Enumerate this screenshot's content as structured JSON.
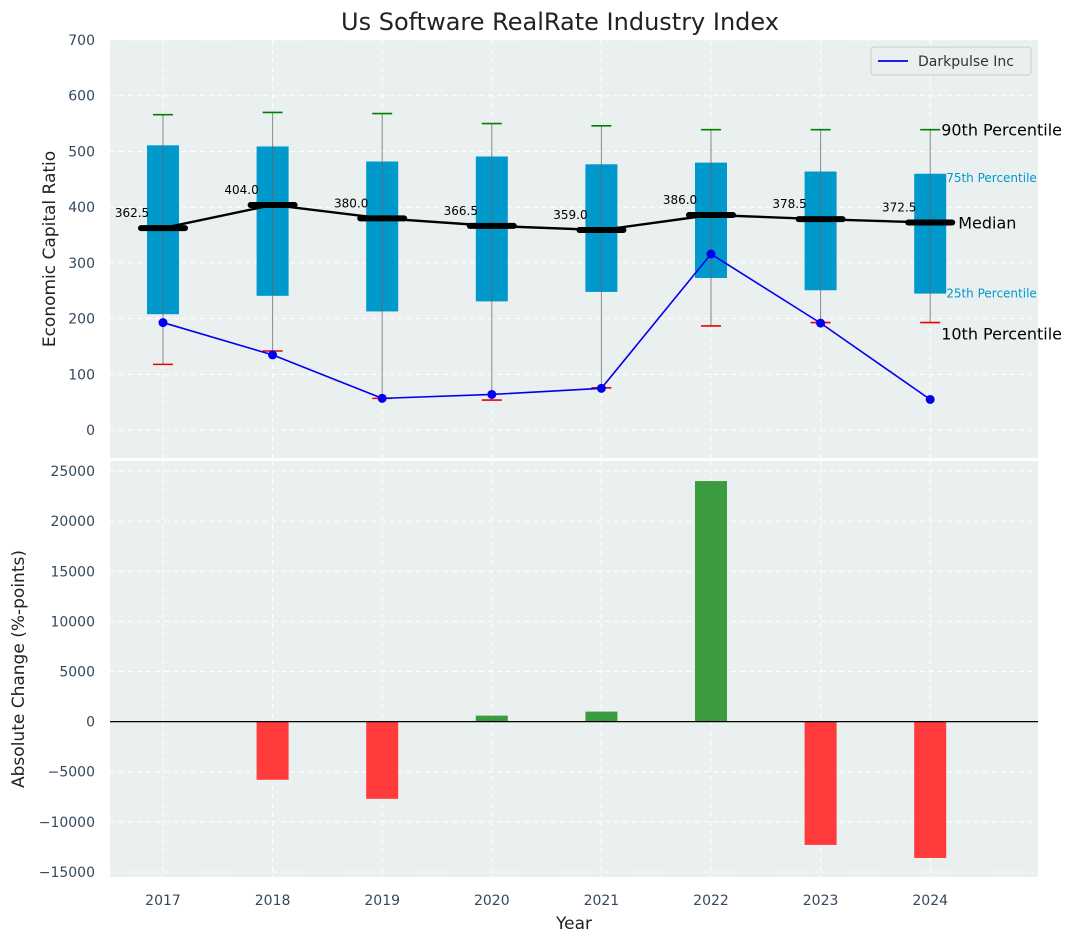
{
  "chart_data": [
    {
      "type": "box",
      "title": "Us Software RealRate Industry Index",
      "ylabel": "Economic Capital Ratio",
      "ylim": [
        -50,
        700
      ],
      "yticks": [
        0,
        100,
        200,
        300,
        400,
        500,
        600,
        700
      ],
      "categories": [
        "2017",
        "2018",
        "2019",
        "2020",
        "2021",
        "2022",
        "2023",
        "2024"
      ],
      "p10": [
        118,
        142,
        57,
        54,
        76,
        187,
        193,
        193
      ],
      "p25": [
        208,
        241,
        213,
        231,
        248,
        273,
        251,
        245
      ],
      "median": [
        362.5,
        404.0,
        380.0,
        366.5,
        359.0,
        386.0,
        378.5,
        372.5
      ],
      "median_labels": [
        "362.5",
        "404.0",
        "380.0",
        "366.5",
        "359.0",
        "386.0",
        "378.5",
        "372.5"
      ],
      "p75": [
        511,
        509,
        482,
        491,
        477,
        480,
        464,
        460
      ],
      "p90": [
        566,
        570,
        568,
        550,
        546,
        539,
        539,
        539
      ],
      "series": [
        {
          "name": "Darkpulse Inc",
          "values": [
            193,
            135,
            57,
            64,
            75,
            316,
            192,
            55
          ]
        }
      ],
      "legend": {
        "position": "top-right",
        "entries": [
          "Darkpulse Inc"
        ]
      },
      "percentile_labels": {
        "p90": "90th Percentile",
        "p75": "75th Percentile",
        "median": "Median",
        "p25": "25th Percentile",
        "p10": "10th Percentile"
      },
      "grid": true
    },
    {
      "type": "bar",
      "xlabel": "Year",
      "ylabel": "Absolute Change (%-points)",
      "ylim": [
        -15500,
        26000
      ],
      "yticks": [
        -15000,
        -10000,
        -5000,
        0,
        5000,
        10000,
        15000,
        20000,
        25000
      ],
      "ytick_labels": [
        "−15000",
        "−10000",
        "−5000",
        "0",
        "5000",
        "10000",
        "15000",
        "20000",
        "25000"
      ],
      "categories": [
        "2017",
        "2018",
        "2019",
        "2020",
        "2021",
        "2022",
        "2023",
        "2024"
      ],
      "values": [
        0,
        -5800,
        -7700,
        600,
        1000,
        24000,
        -12300,
        -13600
      ],
      "grid": true
    }
  ],
  "colors": {
    "box_fill": "#0099cc",
    "series_line": "#0000ee",
    "median_line": "#000000",
    "p90_cap": "#008000",
    "p10_cap": "#ee0000",
    "bar_positive": "#3a9c3e",
    "bar_negative": "#ff3b3b",
    "panel_bg": "#eaeff0",
    "grid": "#ffffff"
  }
}
